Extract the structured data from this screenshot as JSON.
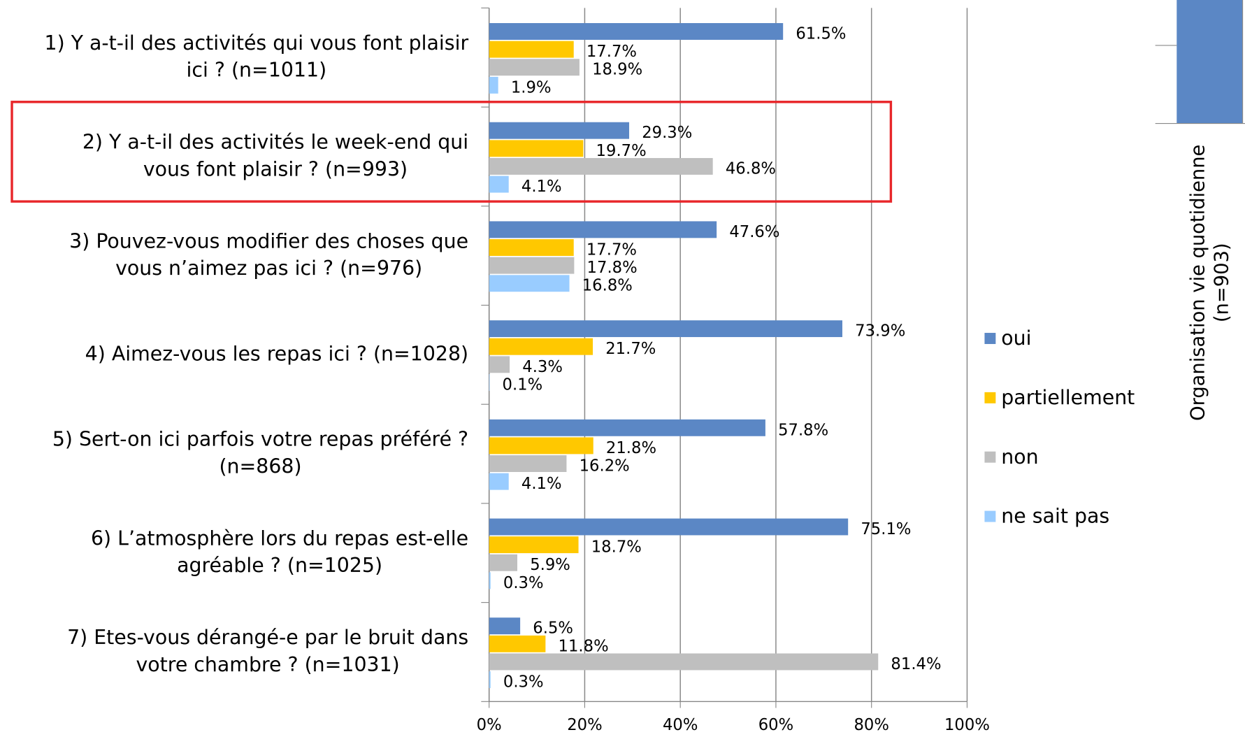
{
  "chart_data": {
    "type": "hbar",
    "categories": [
      [
        "1) Y a-t-il des activités qui vous font plaisir",
        "ici ? (n=1011)"
      ],
      [
        "2) Y a-t-il des activités le week-end qui",
        "vous font plaisir ? (n=993)"
      ],
      [
        "3) Pouvez-vous modifier des choses que",
        "vous n’aimez pas ici ? (n=976)"
      ],
      [
        "4) Aimez-vous les repas ici ? (n=1028)"
      ],
      [
        "5) Sert-on ici parfois votre repas préféré ?",
        "(n=868)"
      ],
      [
        "6) L’atmosphère lors du repas est-elle",
        "agréable ? (n=1025)"
      ],
      [
        "7) Etes-vous dérangé-e par le bruit dans",
        "votre chambre ? (n=1031)"
      ]
    ],
    "series": [
      {
        "name": "oui",
        "color": "#5b87c5",
        "values": [
          61.5,
          29.3,
          47.6,
          73.9,
          57.8,
          75.1,
          6.5
        ],
        "value_labels": [
          "61.5%",
          "29.3%",
          "47.6%",
          "73.9%",
          "57.8%",
          "75.1%",
          "6.5%"
        ]
      },
      {
        "name": "partiellement",
        "color": "#ffc800",
        "values": [
          17.7,
          19.7,
          17.7,
          21.7,
          21.8,
          18.7,
          11.8
        ],
        "value_labels": [
          "17.7%",
          "19.7%",
          "17.7%",
          "21.7%",
          "21.8%",
          "18.7%",
          "11.8%"
        ]
      },
      {
        "name": "non",
        "color": "#bfbfbf",
        "values": [
          18.9,
          46.8,
          17.8,
          4.3,
          16.2,
          5.9,
          81.4
        ],
        "value_labels": [
          "18.9%",
          "46.8%",
          "17.8%",
          "4.3%",
          "16.2%",
          "5.9%",
          "81.4%"
        ]
      },
      {
        "name": "ne sait pas",
        "color": "#99ccff",
        "values": [
          1.9,
          4.1,
          16.8,
          0.1,
          4.1,
          0.3,
          0.3
        ],
        "value_labels": [
          "1.9%",
          "4.1%",
          "16.8%",
          "0.1%",
          "4.1%",
          "0.3%",
          "0.3%"
        ]
      }
    ],
    "xlim": [
      0,
      100
    ],
    "xticks": [
      {
        "value": 0,
        "label": "0%"
      },
      {
        "value": 20,
        "label": "20%"
      },
      {
        "value": 40,
        "label": "40%"
      },
      {
        "value": 60,
        "label": "60%"
      },
      {
        "value": 80,
        "label": "80%"
      },
      {
        "value": 100,
        "label": "100%"
      }
    ],
    "grid": true,
    "legend": "right"
  },
  "cropped_chart_label": [
    "Organisation vie quotidienne",
    "(n=903)"
  ]
}
